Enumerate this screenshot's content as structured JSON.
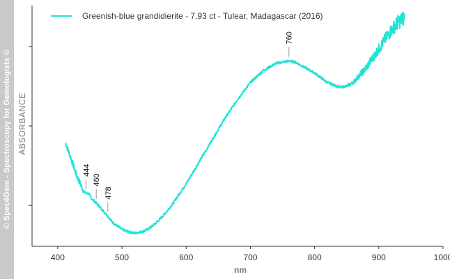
{
  "watermark": "© Spec4Gem - Spectroscopy for Gemologists ©",
  "colors": {
    "series": "#1fe3d4",
    "axis": "#333333",
    "annotation": "#999999",
    "banner": "#c9c9c9"
  },
  "chart_data": {
    "type": "line",
    "title": "",
    "xlabel": "nm",
    "ylabel": "ABSORBANCE",
    "xlim": [
      360,
      1000
    ],
    "ylim": [
      0,
      1
    ],
    "xticks": [
      400,
      500,
      600,
      700,
      800,
      900,
      1000
    ],
    "yticks": [
      0.17,
      0.5,
      0.83
    ],
    "grid": false,
    "legend_position": "top-left",
    "series": [
      {
        "name": "Greenish-blue grandidierite - 7.93 ct - Tulear, Madagascar (2016)",
        "color": "#1fe3d4",
        "x": [
          412,
          416,
          420,
          425,
          430,
          435,
          440,
          444,
          448,
          452,
          456,
          460,
          465,
          470,
          475,
          478,
          485,
          490,
          500,
          510,
          520,
          530,
          540,
          550,
          560,
          570,
          580,
          590,
          600,
          620,
          640,
          660,
          680,
          700,
          720,
          740,
          760,
          770,
          780,
          790,
          800,
          810,
          820,
          830,
          840,
          850,
          860,
          870,
          880,
          890,
          900,
          910,
          920,
          930,
          940
        ],
        "y": [
          0.43,
          0.4,
          0.37,
          0.33,
          0.29,
          0.26,
          0.23,
          0.22,
          0.22,
          0.2,
          0.19,
          0.18,
          0.165,
          0.15,
          0.135,
          0.125,
          0.1,
          0.09,
          0.07,
          0.06,
          0.055,
          0.06,
          0.07,
          0.09,
          0.115,
          0.145,
          0.18,
          0.22,
          0.26,
          0.35,
          0.44,
          0.53,
          0.61,
          0.68,
          0.73,
          0.76,
          0.77,
          0.765,
          0.75,
          0.735,
          0.72,
          0.7,
          0.68,
          0.67,
          0.66,
          0.665,
          0.68,
          0.71,
          0.74,
          0.78,
          0.82,
          0.86,
          0.9,
          0.93,
          0.95
        ]
      }
    ],
    "annotations": [
      {
        "x": 444,
        "y": 0.22,
        "label": "444"
      },
      {
        "x": 460,
        "y": 0.18,
        "label": "460"
      },
      {
        "x": 478,
        "y": 0.125,
        "label": "478"
      },
      {
        "x": 760,
        "y": 0.77,
        "label": "760"
      }
    ]
  }
}
